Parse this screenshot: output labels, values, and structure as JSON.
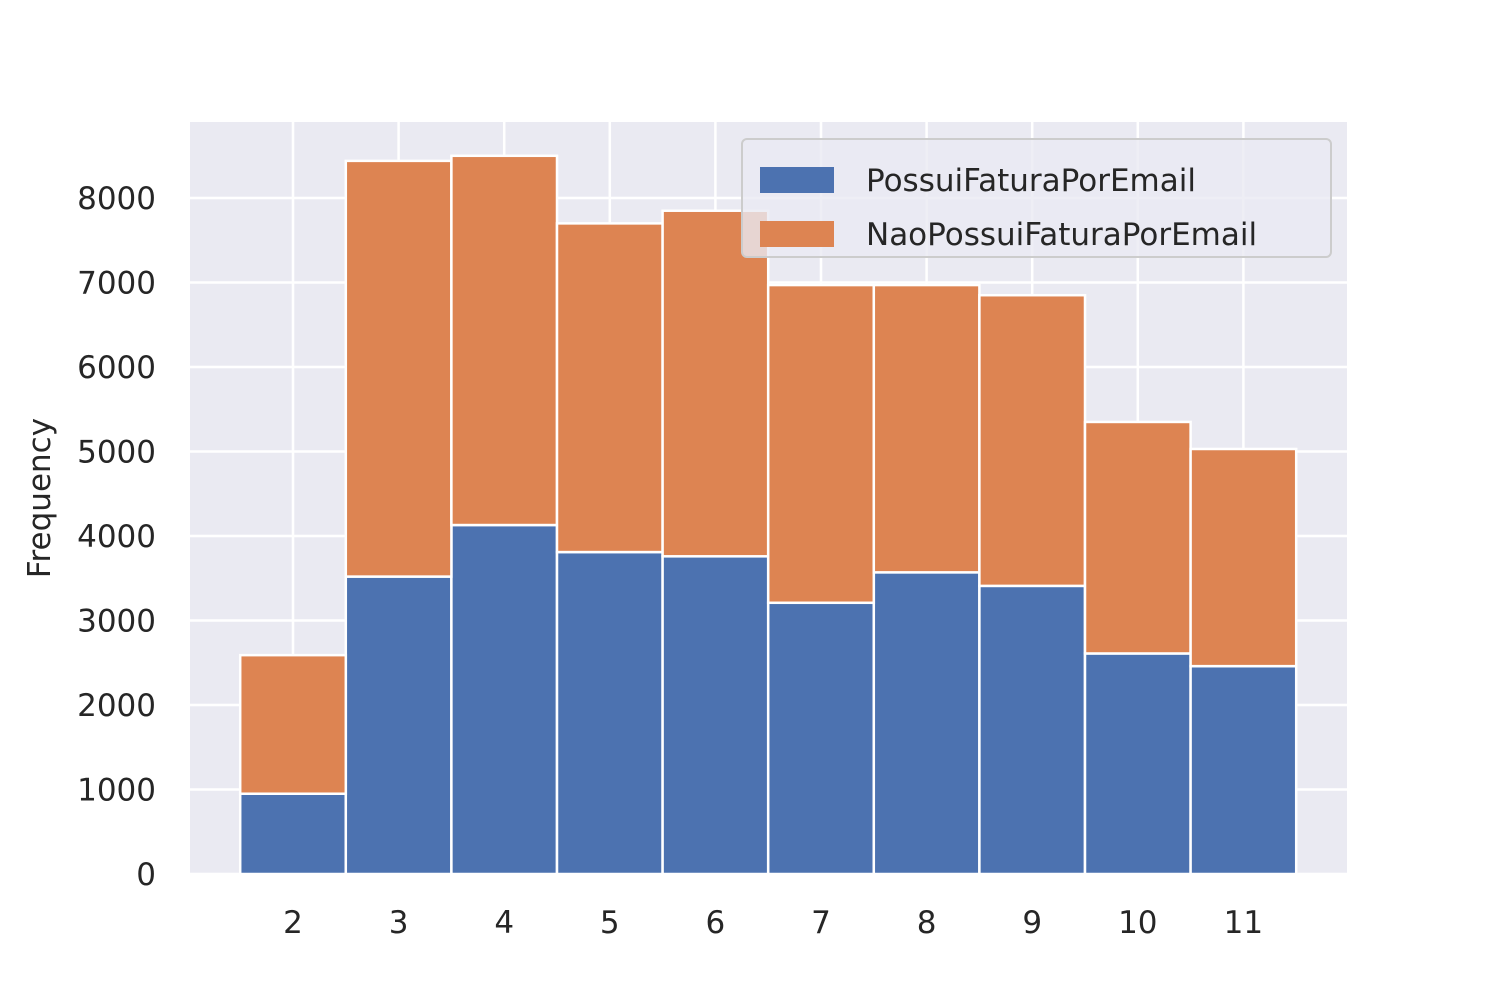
{
  "chart_data": {
    "type": "bar",
    "stacked": true,
    "title": "",
    "xlabel": "",
    "ylabel": "Frequency",
    "categories": [
      "2",
      "3",
      "4",
      "5",
      "6",
      "7",
      "8",
      "9",
      "10",
      "11"
    ],
    "series": [
      {
        "name": "PossuiFaturaPorEmail",
        "color": "#4c72b0",
        "values": [
          950,
          3520,
          4130,
          3810,
          3760,
          3210,
          3570,
          3410,
          2610,
          2460
        ]
      },
      {
        "name": "NaoPossuiFaturaPorEmail",
        "color": "#dd8452",
        "values": [
          1640,
          4920,
          4370,
          3890,
          4090,
          3760,
          3400,
          3440,
          2740,
          2570
        ]
      }
    ],
    "ylim": [
      0,
      8900
    ],
    "yticks": [
      0,
      1000,
      2000,
      3000,
      4000,
      5000,
      6000,
      7000,
      8000
    ],
    "ytick_labels": [
      "0",
      "1000",
      "2000",
      "3000",
      "4000",
      "5000",
      "6000",
      "7000",
      "8000"
    ],
    "grid": true,
    "legend_position": "top-right",
    "style": {
      "plot_background": "#eaeaf2",
      "grid_color": "#ffffff",
      "text_color": "#262626"
    }
  }
}
